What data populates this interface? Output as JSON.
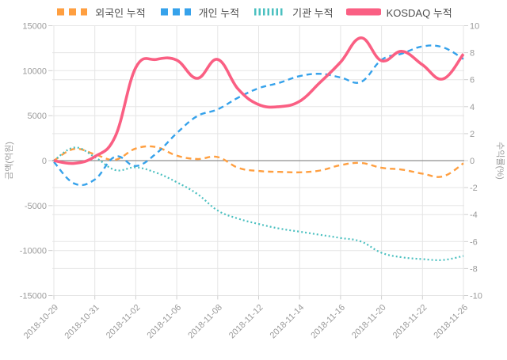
{
  "chart_data": {
    "type": "line",
    "title": "",
    "legend_position": "top",
    "grid": true,
    "x": [
      "2018-10-29",
      "2018-10-30",
      "2018-10-31",
      "2018-11-01",
      "2018-11-02",
      "2018-11-05",
      "2018-11-06",
      "2018-11-07",
      "2018-11-08",
      "2018-11-09",
      "2018-11-12",
      "2018-11-13",
      "2018-11-14",
      "2018-11-15",
      "2018-11-16",
      "2018-11-19",
      "2018-11-20",
      "2018-11-21",
      "2018-11-22",
      "2018-11-23",
      "2018-11-26"
    ],
    "x_tick_labels": [
      "2018-10-29",
      "2018-10-31",
      "2018-11-02",
      "2018-11-06",
      "2018-11-08",
      "2018-11-12",
      "2018-11-14",
      "2018-11-16",
      "2018-11-20",
      "2018-11-22",
      "2018-11-26"
    ],
    "left_axis": {
      "label": "금액(억원)",
      "min": -15000,
      "max": 15000,
      "ticks": [
        15000,
        10000,
        5000,
        0,
        -5000,
        -10000,
        -15000
      ]
    },
    "right_axis": {
      "label": "수익률(%)",
      "min": -10,
      "max": 10,
      "ticks": [
        10,
        8,
        6,
        4,
        2,
        0,
        -2,
        -4,
        -6,
        -8,
        -10
      ]
    },
    "series": [
      {
        "name": "외국인 누적",
        "axis": "left",
        "color": "#ff9f40",
        "style": "dashed",
        "width": 2.4,
        "values": [
          0,
          1300,
          700,
          100,
          1350,
          1500,
          550,
          180,
          400,
          -800,
          -1150,
          -1250,
          -1300,
          -1100,
          -500,
          -260,
          -800,
          -1000,
          -1450,
          -1750,
          -300
        ]
      },
      {
        "name": "개인 누적",
        "axis": "left",
        "color": "#36a2eb",
        "style": "dashed",
        "width": 2.4,
        "values": [
          -150,
          -2550,
          -2100,
          450,
          -600,
          800,
          3050,
          4950,
          5700,
          7000,
          8050,
          8650,
          9400,
          9650,
          9250,
          8750,
          11200,
          11900,
          12700,
          12600,
          11300
        ]
      },
      {
        "name": "기관 누적",
        "axis": "left",
        "color": "#4bc0c0",
        "style": "dotted",
        "width": 2.2,
        "values": [
          0,
          1450,
          400,
          -1050,
          -750,
          -1350,
          -2400,
          -3700,
          -5550,
          -6450,
          -7050,
          -7550,
          -7900,
          -8250,
          -8600,
          -9000,
          -10250,
          -10750,
          -10950,
          -11050,
          -10600
        ]
      },
      {
        "name": "KOSDAQ 누적",
        "axis": "right",
        "color": "#fa5f83",
        "style": "solid",
        "width": 3.6,
        "values": [
          0,
          -0.2,
          0.3,
          1.8,
          6.9,
          7.5,
          7.45,
          6.1,
          7.5,
          5.3,
          4.15,
          4.0,
          4.4,
          5.8,
          7.3,
          9.1,
          7.4,
          8.1,
          7.1,
          6.05,
          7.9
        ]
      }
    ],
    "colors": {
      "grid": "#e5e5e5",
      "zero_line": "#8f8f8f",
      "tick_label": "#9b9b9b",
      "axis_title": "#9b9b9b",
      "legend_text": "#4e4e4e",
      "background": "#ffffff"
    }
  }
}
